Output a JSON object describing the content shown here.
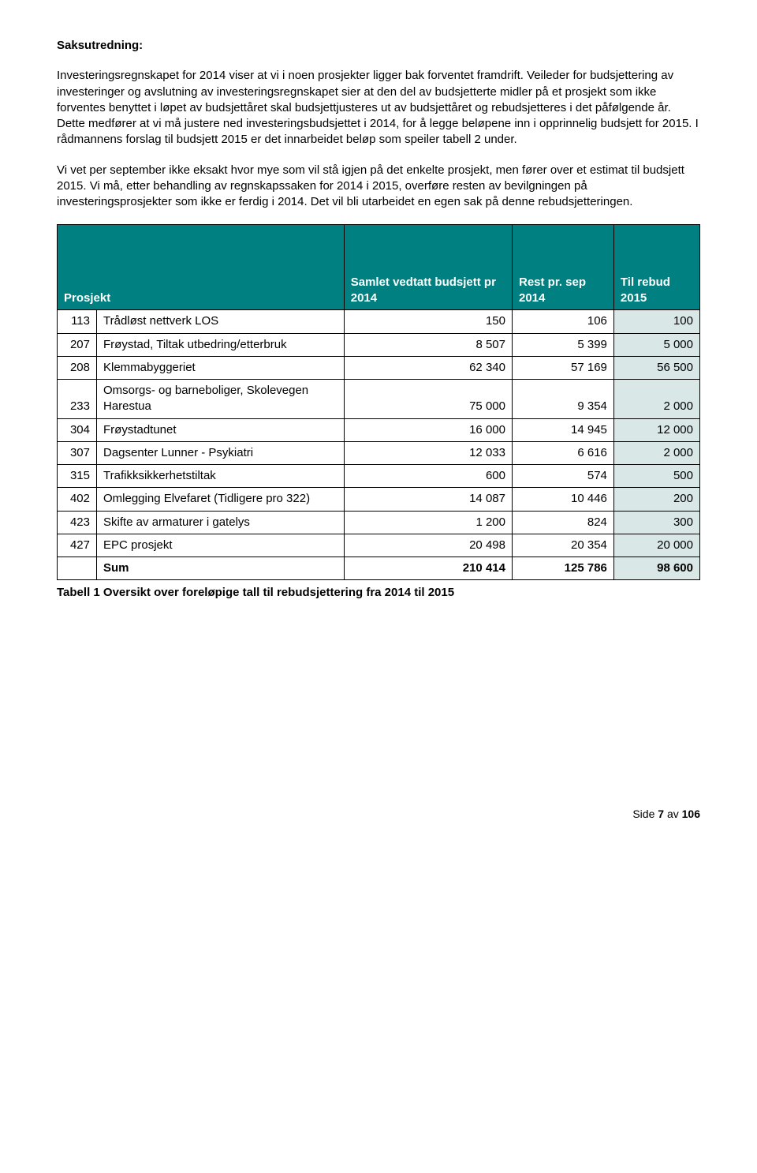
{
  "heading": "Saksutredning:",
  "para1": "Investeringsregnskapet for 2014 viser at vi i noen prosjekter ligger bak forventet framdrift. Veileder for budsjettering av investeringer og avslutning av investeringsregnskapet sier at den del av budsjetterte midler på et prosjekt som ikke forventes benyttet i løpet av budsjettåret skal budsjettjusteres ut av budsjettåret og rebudsjetteres i det påfølgende år. Dette medfører at vi må justere ned investeringsbudsjettet i 2014, for å legge beløpene inn i opprinnelig budsjett for 2015. I rådmannens forslag til budsjett 2015 er det innarbeidet beløp som speiler tabell 2 under.",
  "para2": "Vi vet per september ikke eksakt hvor mye som vil stå igjen på det enkelte prosjekt, men fører over et estimat til budsjett 2015. Vi må, etter behandling av regnskapssaken for 2014 i 2015, overføre resten av bevilgningen på investeringsprosjekter som ikke er ferdig i 2014. Det vil bli utarbeidet en egen sak på denne rebudsjetteringen.",
  "table": {
    "header_bg": "#008080",
    "header_fg": "#ffffff",
    "rebud_bg": "#d9e7e7",
    "columns": [
      {
        "label": "Prosjekt",
        "align": "left"
      },
      {
        "label": "Samlet vedtatt budsjett pr 2014",
        "align": "left"
      },
      {
        "label": "Rest pr. sep 2014",
        "align": "left"
      },
      {
        "label": "Til rebud 2015",
        "align": "left"
      }
    ],
    "rows": [
      {
        "id": "113",
        "name": "Trådløst nettverk LOS",
        "v1": "150",
        "v2": "106",
        "v3": "100"
      },
      {
        "id": "207",
        "name": "Frøystad, Tiltak utbedring/etterbruk",
        "v1": "8 507",
        "v2": "5 399",
        "v3": "5 000"
      },
      {
        "id": "208",
        "name": "Klemmabyggeriet",
        "v1": "62 340",
        "v2": "57 169",
        "v3": "56 500"
      },
      {
        "id": "233",
        "name": "Omsorgs- og barneboliger, Skolevegen Harestua",
        "v1": "75 000",
        "v2": "9 354",
        "v3": "2 000"
      },
      {
        "id": "304",
        "name": "Frøystadtunet",
        "v1": "16 000",
        "v2": "14 945",
        "v3": "12 000"
      },
      {
        "id": "307",
        "name": "Dagsenter Lunner - Psykiatri",
        "v1": "12 033",
        "v2": "6 616",
        "v3": "2 000"
      },
      {
        "id": "315",
        "name": "Trafikksikkerhetstiltak",
        "v1": "600",
        "v2": "574",
        "v3": "500"
      },
      {
        "id": "402",
        "name": "Omlegging Elvefaret (Tidligere pro 322)",
        "v1": "14 087",
        "v2": "10 446",
        "v3": "200"
      },
      {
        "id": "423",
        "name": "Skifte av armaturer i gatelys",
        "v1": "1 200",
        "v2": "824",
        "v3": "300"
      },
      {
        "id": "427",
        "name": "EPC prosjekt",
        "v1": "20 498",
        "v2": "20 354",
        "v3": "20 000"
      }
    ],
    "sum": {
      "label": "Sum",
      "v1": "210 414",
      "v2": "125 786",
      "v3": "98 600"
    }
  },
  "table_caption": "Tabell 1 Oversikt over foreløpige tall til rebudsjettering fra 2014 til 2015",
  "footer": {
    "prefix": "Side ",
    "page": "7",
    "of_word": " av ",
    "total": "106"
  }
}
